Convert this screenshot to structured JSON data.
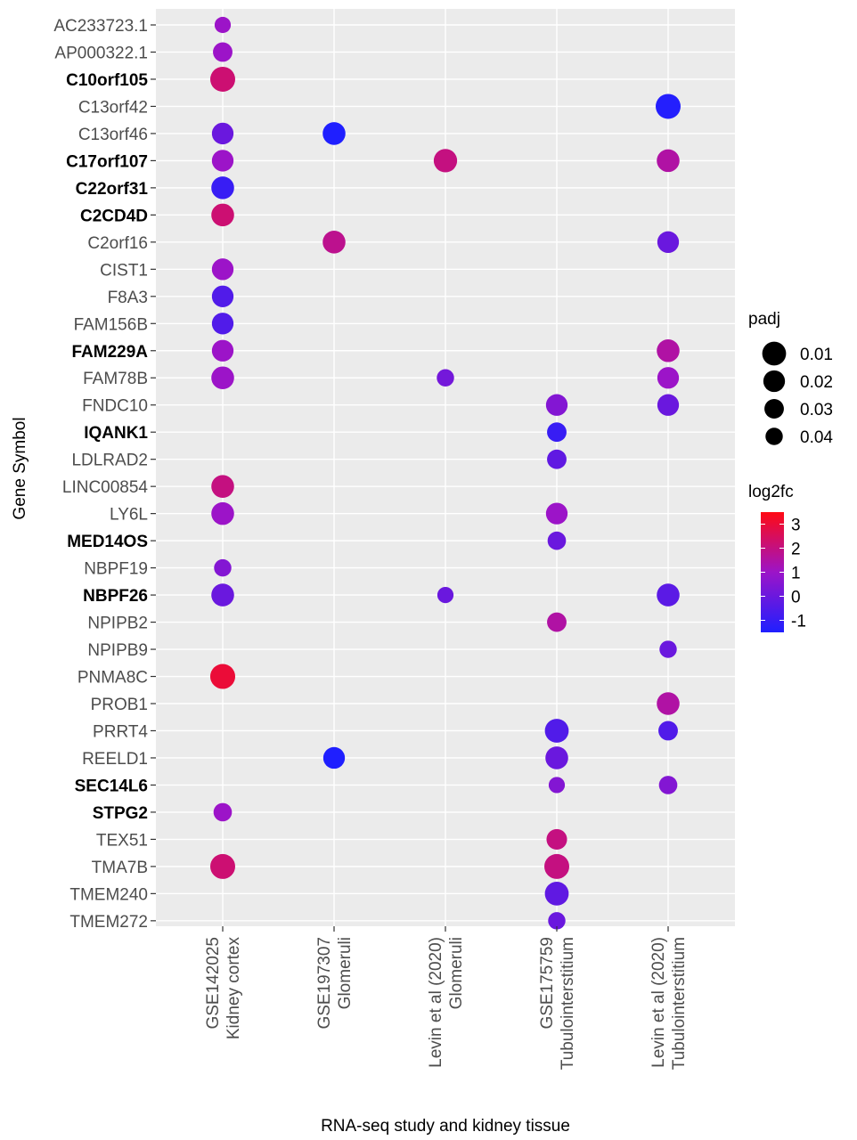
{
  "chart_data": {
    "type": "scatter",
    "xlabel": "RNA-seq study and kidney tissue",
    "ylabel": "Gene Symbol",
    "grid": true,
    "legend_placement": "right",
    "colors": {
      "panel_bg": "#ebebeb",
      "grid": "#ffffff",
      "low": "#1f1fff",
      "mid": "#9c14c8",
      "high": "#ff0a14"
    },
    "categories_x": [
      [
        "GSE142025",
        "Kidney cortex"
      ],
      [
        "GSE197307",
        "Glomeruli"
      ],
      [
        "Levin et al (2020)",
        "Glomeruli"
      ],
      [
        "GSE175759",
        "Tubulointerstitium"
      ],
      [
        "Levin et al (2020)",
        "Tubulointerstitium"
      ]
    ],
    "genes": [
      {
        "name": "AC233723.1",
        "bold": false
      },
      {
        "name": "AP000322.1",
        "bold": false
      },
      {
        "name": "C10orf105",
        "bold": true
      },
      {
        "name": "C13orf42",
        "bold": false
      },
      {
        "name": "C13orf46",
        "bold": false
      },
      {
        "name": "C17orf107",
        "bold": true
      },
      {
        "name": "C22orf31",
        "bold": true
      },
      {
        "name": "C2CD4D",
        "bold": true
      },
      {
        "name": "C2orf16",
        "bold": false
      },
      {
        "name": "CIST1",
        "bold": false
      },
      {
        "name": "F8A3",
        "bold": false
      },
      {
        "name": "FAM156B",
        "bold": false
      },
      {
        "name": "FAM229A",
        "bold": true
      },
      {
        "name": "FAM78B",
        "bold": false
      },
      {
        "name": "FNDC10",
        "bold": false
      },
      {
        "name": "IQANK1",
        "bold": true
      },
      {
        "name": "LDLRAD2",
        "bold": false
      },
      {
        "name": "LINC00854",
        "bold": false
      },
      {
        "name": "LY6L",
        "bold": false
      },
      {
        "name": "MED14OS",
        "bold": true
      },
      {
        "name": "NBPF19",
        "bold": false
      },
      {
        "name": "NBPF26",
        "bold": true
      },
      {
        "name": "NPIPB2",
        "bold": false
      },
      {
        "name": "NPIPB9",
        "bold": false
      },
      {
        "name": "PNMA8C",
        "bold": false
      },
      {
        "name": "PROB1",
        "bold": false
      },
      {
        "name": "PRRT4",
        "bold": false
      },
      {
        "name": "REELD1",
        "bold": false
      },
      {
        "name": "SEC14L6",
        "bold": true
      },
      {
        "name": "STPG2",
        "bold": true
      },
      {
        "name": "TEX51",
        "bold": false
      },
      {
        "name": "TMA7B",
        "bold": false
      },
      {
        "name": "TMEM240",
        "bold": false
      },
      {
        "name": "TMEM272",
        "bold": false
      }
    ],
    "points": [
      {
        "gene": "AC233723.1",
        "study": 0,
        "log2fc": 1.0,
        "padj": 0.045
      },
      {
        "gene": "AP000322.1",
        "study": 0,
        "log2fc": 1.0,
        "padj": 0.03
      },
      {
        "gene": "C10orf105",
        "study": 0,
        "log2fc": 2.2,
        "padj": 0.005
      },
      {
        "gene": "C13orf42",
        "study": 4,
        "log2fc": -1.4,
        "padj": 0.005
      },
      {
        "gene": "C13orf46",
        "study": 0,
        "log2fc": 0.0,
        "padj": 0.02
      },
      {
        "gene": "C13orf46",
        "study": 1,
        "log2fc": -1.5,
        "padj": 0.015
      },
      {
        "gene": "C17orf107",
        "study": 0,
        "log2fc": 1.0,
        "padj": 0.02
      },
      {
        "gene": "C17orf107",
        "study": 2,
        "log2fc": 2.0,
        "padj": 0.012
      },
      {
        "gene": "C17orf107",
        "study": 4,
        "log2fc": 1.5,
        "padj": 0.015
      },
      {
        "gene": "C22orf31",
        "study": 0,
        "log2fc": -1.0,
        "padj": 0.015
      },
      {
        "gene": "C2CD4D",
        "study": 0,
        "log2fc": 2.2,
        "padj": 0.015
      },
      {
        "gene": "C2orf16",
        "study": 1,
        "log2fc": 1.8,
        "padj": 0.015
      },
      {
        "gene": "C2orf16",
        "study": 4,
        "log2fc": 0.0,
        "padj": 0.02
      },
      {
        "gene": "CIST1",
        "study": 0,
        "log2fc": 1.0,
        "padj": 0.02
      },
      {
        "gene": "F8A3",
        "study": 0,
        "log2fc": -0.5,
        "padj": 0.02
      },
      {
        "gene": "FAM156B",
        "study": 0,
        "log2fc": -0.5,
        "padj": 0.02
      },
      {
        "gene": "FAM229A",
        "study": 0,
        "log2fc": 1.0,
        "padj": 0.02
      },
      {
        "gene": "FAM229A",
        "study": 4,
        "log2fc": 1.5,
        "padj": 0.015
      },
      {
        "gene": "FAM78B",
        "study": 0,
        "log2fc": 1.0,
        "padj": 0.015
      },
      {
        "gene": "FAM78B",
        "study": 2,
        "log2fc": 0.2,
        "padj": 0.04
      },
      {
        "gene": "FAM78B",
        "study": 4,
        "log2fc": 1.0,
        "padj": 0.02
      },
      {
        "gene": "FNDC10",
        "study": 3,
        "log2fc": 0.5,
        "padj": 0.02
      },
      {
        "gene": "FNDC10",
        "study": 4,
        "log2fc": 0.0,
        "padj": 0.02
      },
      {
        "gene": "IQANK1",
        "study": 3,
        "log2fc": -1.0,
        "padj": 0.03
      },
      {
        "gene": "LDLRAD2",
        "study": 3,
        "log2fc": -0.2,
        "padj": 0.03
      },
      {
        "gene": "LINC00854",
        "study": 0,
        "log2fc": 2.0,
        "padj": 0.015
      },
      {
        "gene": "LY6L",
        "study": 0,
        "log2fc": 1.0,
        "padj": 0.015
      },
      {
        "gene": "LY6L",
        "study": 3,
        "log2fc": 1.0,
        "padj": 0.02
      },
      {
        "gene": "MED14OS",
        "study": 3,
        "log2fc": 0.0,
        "padj": 0.035
      },
      {
        "gene": "NBPF19",
        "study": 0,
        "log2fc": 0.5,
        "padj": 0.04
      },
      {
        "gene": "NBPF26",
        "study": 0,
        "log2fc": 0.0,
        "padj": 0.015
      },
      {
        "gene": "NBPF26",
        "study": 2,
        "log2fc": 0.0,
        "padj": 0.045
      },
      {
        "gene": "NBPF26",
        "study": 4,
        "log2fc": -0.3,
        "padj": 0.015
      },
      {
        "gene": "NPIPB2",
        "study": 3,
        "log2fc": 1.5,
        "padj": 0.03
      },
      {
        "gene": "NPIPB9",
        "study": 4,
        "log2fc": 0.0,
        "padj": 0.04
      },
      {
        "gene": "PNMA8C",
        "study": 0,
        "log2fc": 3.0,
        "padj": 0.005
      },
      {
        "gene": "PROB1",
        "study": 4,
        "log2fc": 1.5,
        "padj": 0.015
      },
      {
        "gene": "PRRT4",
        "study": 3,
        "log2fc": -0.5,
        "padj": 0.01
      },
      {
        "gene": "PRRT4",
        "study": 4,
        "log2fc": -0.5,
        "padj": 0.03
      },
      {
        "gene": "REELD1",
        "study": 1,
        "log2fc": -1.5,
        "padj": 0.02
      },
      {
        "gene": "REELD1",
        "study": 3,
        "log2fc": 0.0,
        "padj": 0.015
      },
      {
        "gene": "SEC14L6",
        "study": 3,
        "log2fc": 0.5,
        "padj": 0.045
      },
      {
        "gene": "SEC14L6",
        "study": 4,
        "log2fc": 0.5,
        "padj": 0.035
      },
      {
        "gene": "STPG2",
        "study": 0,
        "log2fc": 1.0,
        "padj": 0.035
      },
      {
        "gene": "TEX51",
        "study": 3,
        "log2fc": 2.0,
        "padj": 0.025
      },
      {
        "gene": "TMA7B",
        "study": 0,
        "log2fc": 2.2,
        "padj": 0.005
      },
      {
        "gene": "TMA7B",
        "study": 3,
        "log2fc": 2.0,
        "padj": 0.005
      },
      {
        "gene": "TMEM240",
        "study": 3,
        "log2fc": -0.2,
        "padj": 0.01
      },
      {
        "gene": "TMEM272",
        "study": 3,
        "log2fc": 0.0,
        "padj": 0.04
      }
    ],
    "legend_size": {
      "title": "padj",
      "breaks": [
        0.01,
        0.02,
        0.03,
        0.04
      ],
      "labels": [
        "0.01",
        "0.02",
        "0.03",
        "0.04"
      ]
    },
    "legend_color": {
      "title": "log2fc",
      "range": [
        -1.5,
        3.5
      ],
      "breaks": [
        3,
        2,
        1,
        0,
        -1
      ],
      "labels": [
        "3",
        "2",
        "1",
        "0",
        "-1"
      ]
    }
  }
}
